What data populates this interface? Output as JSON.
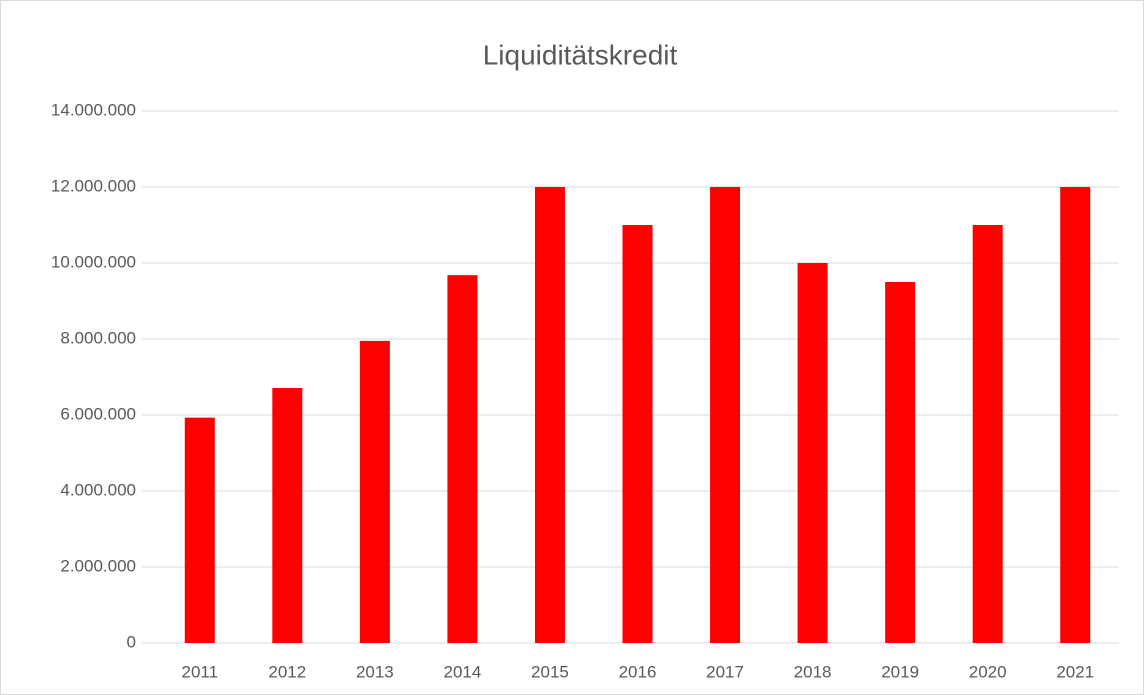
{
  "chart_data": {
    "type": "bar",
    "title": "Liquiditätskredit",
    "categories": [
      "2011",
      "2012",
      "2013",
      "2014",
      "2015",
      "2016",
      "2017",
      "2018",
      "2019",
      "2020",
      "2021"
    ],
    "values": [
      5930000,
      6710000,
      7950000,
      9680000,
      12000000,
      11000000,
      12000000,
      10000000,
      9500000,
      11000000,
      12000000
    ],
    "color": "#ff0000",
    "ylim": [
      0,
      14000000
    ],
    "yticks": [
      0,
      {
        "value": 2000000,
        "label": "2.000.000"
      },
      {
        "value": 4000000,
        "label": "4.000.000"
      },
      {
        "value": 6000000,
        "label": "6.000.000"
      },
      {
        "value": 8000000,
        "label": "8.000.000"
      },
      {
        "value": 10000000,
        "label": "10.000.000"
      },
      {
        "value": 12000000,
        "label": "12.000.000"
      },
      {
        "value": 14000000,
        "label": "14.000.000"
      }
    ],
    "grid": true
  }
}
